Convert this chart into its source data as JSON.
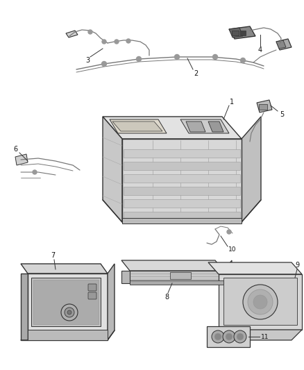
{
  "bg_color": "#ffffff",
  "line_color": "#777777",
  "dark_color": "#333333",
  "mid_color": "#999999",
  "light_fill": "#e8e8e8",
  "mid_fill": "#d0d0d0",
  "dark_fill": "#b0b0b0",
  "label_color": "#111111",
  "figsize": [
    4.38,
    5.33
  ],
  "dpi": 100
}
